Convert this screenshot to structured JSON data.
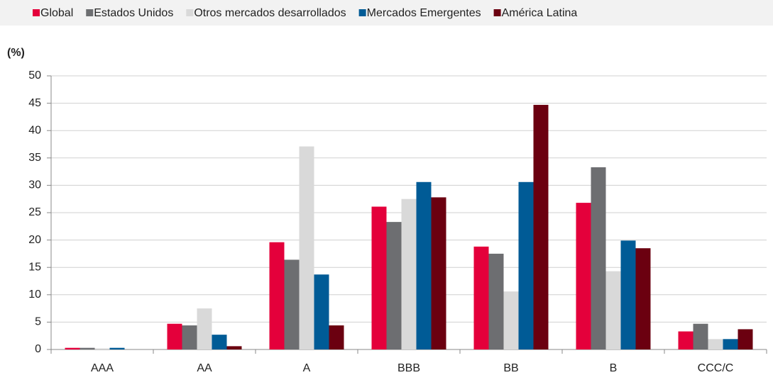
{
  "chart_data": {
    "type": "bar",
    "y_label": "(%)",
    "categories": [
      "AAA",
      "AA",
      "A",
      "BBB",
      "BB",
      "B",
      "CCC/C"
    ],
    "series": [
      {
        "name": "Global",
        "color": "#e4003b",
        "values": [
          0.3,
          4.7,
          19.6,
          26.1,
          18.8,
          26.8,
          3.3
        ]
      },
      {
        "name": "Estados Unidos",
        "color": "#6d6e71",
        "values": [
          0.3,
          4.4,
          16.4,
          23.3,
          17.5,
          33.3,
          4.7
        ]
      },
      {
        "name": "Otros mercados desarrollados",
        "color": "#d9d9d9",
        "values": [
          0.2,
          7.5,
          37.1,
          27.5,
          10.6,
          14.3,
          1.9
        ]
      },
      {
        "name": "Mercados Emergentes",
        "color": "#005b96",
        "values": [
          0.3,
          2.7,
          13.7,
          30.6,
          30.6,
          19.9,
          1.9
        ]
      },
      {
        "name": "América Latina",
        "color": "#6b0010",
        "values": [
          0,
          0.6,
          4.4,
          27.8,
          44.7,
          18.5,
          3.7
        ]
      }
    ],
    "ylim": [
      0,
      50
    ],
    "yticks": [
      0,
      5,
      10,
      15,
      20,
      25,
      30,
      35,
      40,
      45,
      50
    ],
    "grid": true
  }
}
